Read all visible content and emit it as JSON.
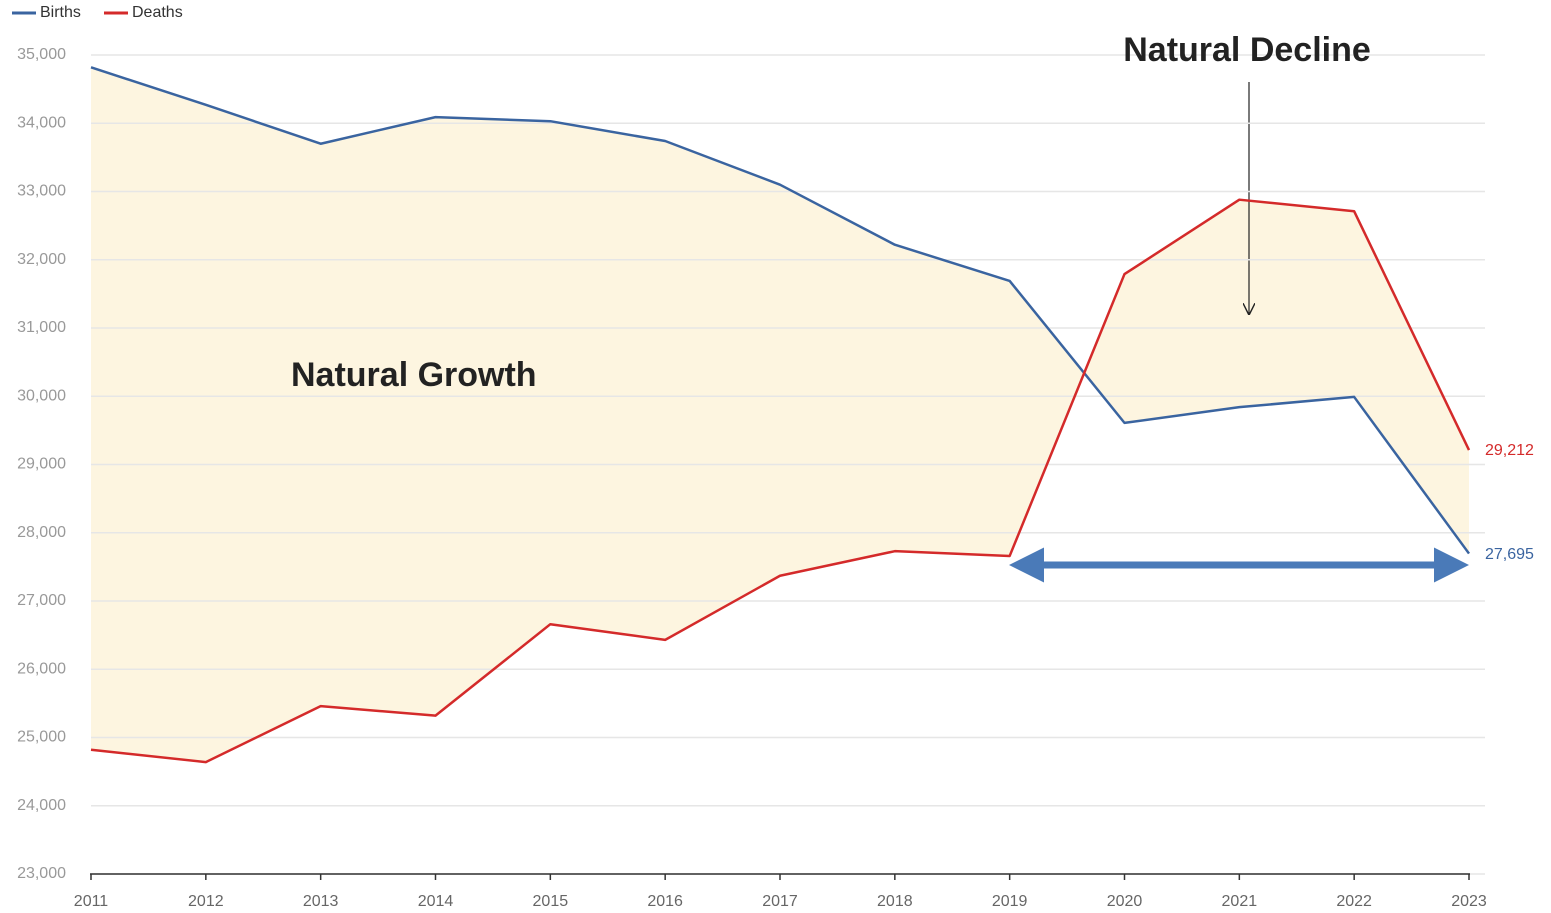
{
  "chart_data": {
    "type": "line",
    "x": [
      2011,
      2012,
      2013,
      2014,
      2015,
      2016,
      2017,
      2018,
      2019,
      2020,
      2021,
      2022,
      2023
    ],
    "series": [
      {
        "name": "Births",
        "color": "#3a64a0",
        "values": [
          34820,
          34270,
          33700,
          34090,
          34030,
          33740,
          33100,
          32220,
          31690,
          29610,
          29840,
          29990,
          27695
        ],
        "value_labels": [
          null,
          null,
          null,
          null,
          null,
          null,
          null,
          null,
          null,
          null,
          null,
          null,
          "27,695"
        ]
      },
      {
        "name": "Deaths",
        "color": "#d42a2a",
        "values": [
          24820,
          24640,
          25460,
          25320,
          26660,
          26430,
          27370,
          27730,
          27660,
          31790,
          32880,
          32710,
          29212
        ],
        "value_labels": [
          null,
          null,
          null,
          null,
          null,
          null,
          null,
          null,
          null,
          null,
          null,
          null,
          "29,212"
        ]
      }
    ],
    "fill_between_color": "#fdf5e0",
    "xlim": [
      2011,
      2023
    ],
    "xticks": [
      2011,
      2012,
      2013,
      2014,
      2015,
      2016,
      2017,
      2018,
      2019,
      2020,
      2021,
      2022,
      2023
    ],
    "ylim": [
      23000,
      35000
    ],
    "yticks": [
      {
        "value": 23000,
        "label": "23,000"
      },
      {
        "value": 24000,
        "label": "24,000"
      },
      {
        "value": 25000,
        "label": "25,000"
      },
      {
        "value": 26000,
        "label": "26,000"
      },
      {
        "value": 27000,
        "label": "27,000"
      },
      {
        "value": 28000,
        "label": "28,000"
      },
      {
        "value": 29000,
        "label": "29,000"
      },
      {
        "value": 30000,
        "label": "30,000"
      },
      {
        "value": 31000,
        "label": "31,000"
      },
      {
        "value": 32000,
        "label": "32,000"
      },
      {
        "value": 33000,
        "label": "33,000"
      },
      {
        "value": 34000,
        "label": "34,000"
      },
      {
        "value": 35000,
        "label": "35,000"
      }
    ],
    "grid": true,
    "legend": "top-left",
    "annotations": [
      {
        "text": "Natural Growth"
      },
      {
        "text": "Natural Decline"
      }
    ]
  }
}
